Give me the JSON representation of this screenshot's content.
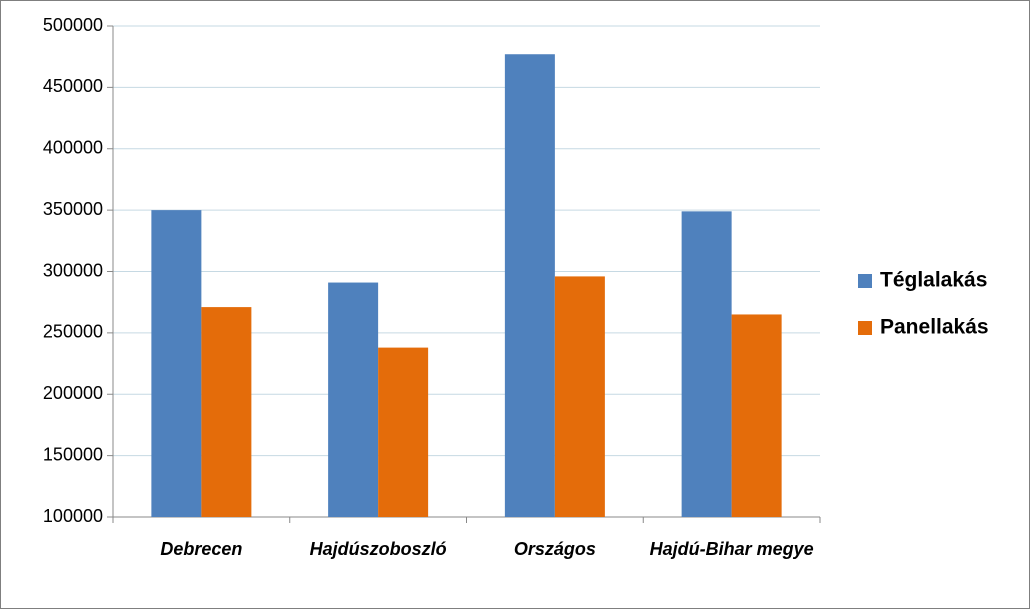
{
  "chart_data": {
    "type": "bar",
    "categories": [
      "Debrecen",
      "Hajdúszoboszló",
      "Országos",
      "Hajdú-Bihar megye"
    ],
    "series": [
      {
        "name": "Téglalakás",
        "color": "#4f81bd",
        "values": [
          350000,
          291000,
          477000,
          349000
        ]
      },
      {
        "name": "Panellakás",
        "color": "#e46c0a",
        "values": [
          271000,
          238000,
          296000,
          265000
        ]
      }
    ],
    "ylim": [
      100000,
      500000
    ],
    "yticks": [
      100000,
      150000,
      200000,
      250000,
      300000,
      350000,
      400000,
      450000,
      500000
    ],
    "grid": true,
    "legend": "right"
  }
}
